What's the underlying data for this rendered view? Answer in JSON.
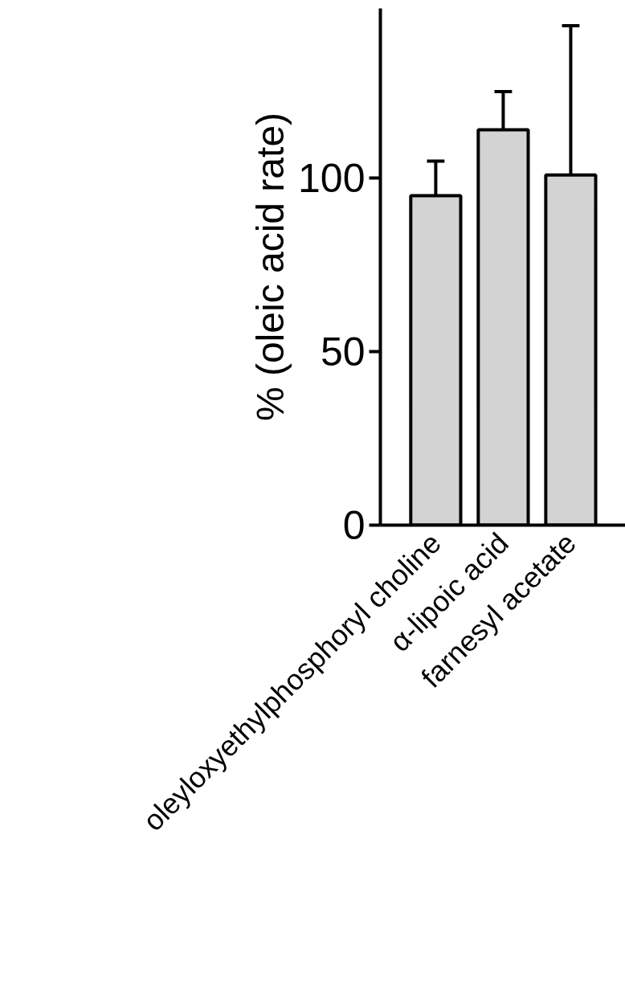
{
  "chart_data": {
    "type": "bar",
    "ylabel": "% (oleic acid rate)",
    "categories": [
      "oleyloxyethylphosphoryl choline",
      "α-lipoic acid",
      "farnesyl acetate"
    ],
    "values": [
      95,
      114,
      101
    ],
    "errors": [
      [
        95,
        105
      ],
      [
        114,
        125
      ],
      [
        101,
        144
      ]
    ],
    "color": "#d3d3d3",
    "ylim": [
      0,
      149
    ],
    "yticks": [
      0,
      50,
      100
    ],
    "grid": false
  }
}
